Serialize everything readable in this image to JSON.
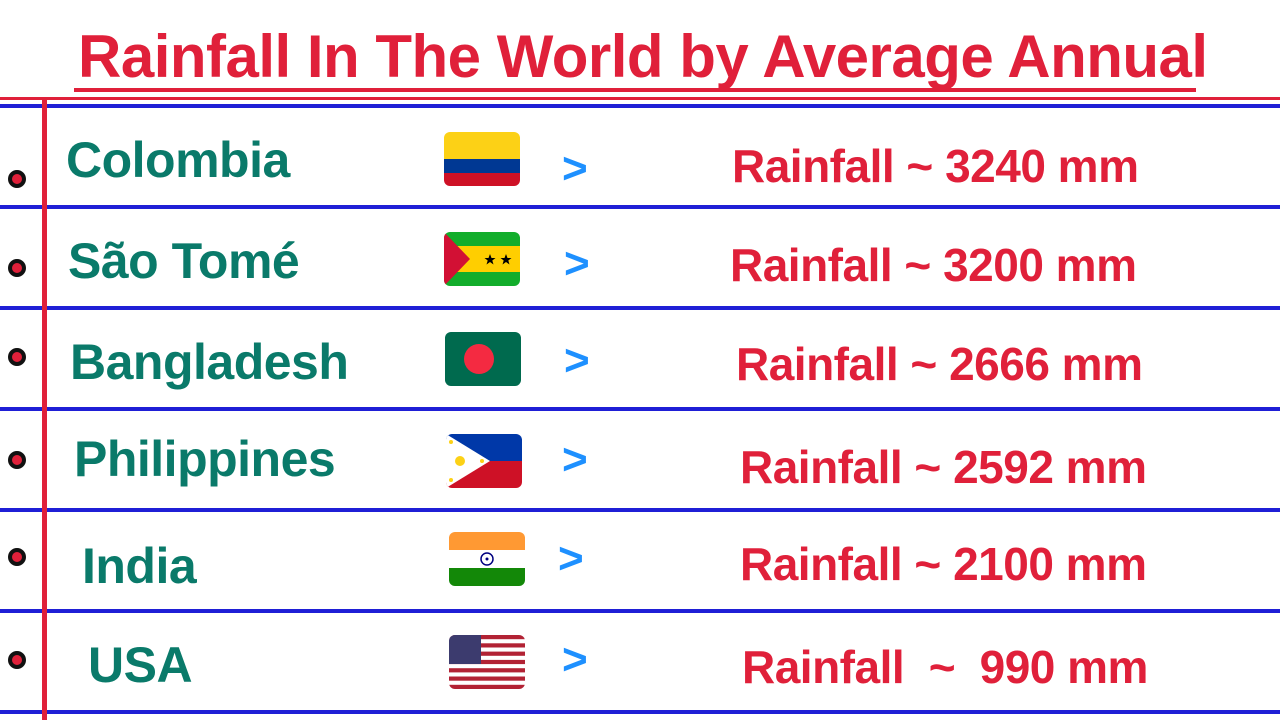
{
  "title": "Rainfall In The World by Average Annual",
  "colors": {
    "title": "#e0203a",
    "country_text": "#0a7a6a",
    "rain_text": "#e0203a",
    "arrow": "#1e90ff",
    "rule_lines": "#1f1fd6",
    "margin_line": "#e0203a"
  },
  "rows": [
    {
      "country": "Colombia",
      "flag": "colombia-flag-icon",
      "arrow": ">",
      "rainfall": "Rainfall ~ 3240 mm"
    },
    {
      "country": "São Tomé",
      "flag": "sao-tome-flag-icon",
      "arrow": ">",
      "rainfall": "Rainfall ~ 3200 mm"
    },
    {
      "country": "Bangladesh",
      "flag": "bangladesh-flag-icon",
      "arrow": ">",
      "rainfall": "Rainfall ~ 2666 mm"
    },
    {
      "country": "Philippines",
      "flag": "philippines-flag-icon",
      "arrow": ">",
      "rainfall": "Rainfall ~ 2592 mm"
    },
    {
      "country": "India",
      "flag": "india-flag-icon",
      "arrow": ">",
      "rainfall": "Rainfall ~ 2100 mm"
    },
    {
      "country": "USA",
      "flag": "usa-flag-icon",
      "arrow": ">",
      "rainfall": "Rainfall  ~  990 mm"
    }
  ]
}
